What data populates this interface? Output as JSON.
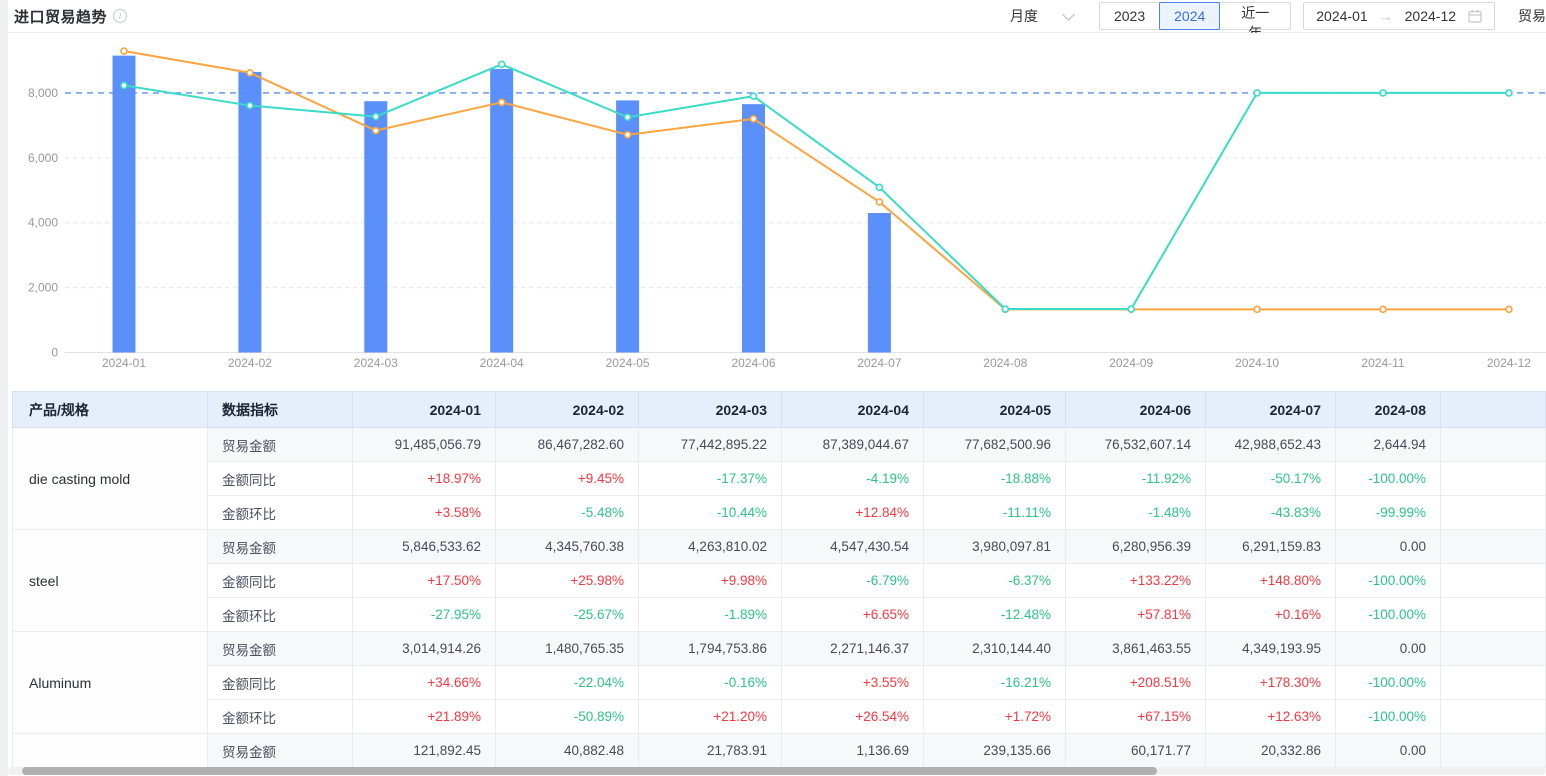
{
  "header": {
    "title": "进口贸易趋势",
    "period_select_value": "月度",
    "year_buttons": [
      "2023",
      "2024",
      "近一年"
    ],
    "active_year": "2024",
    "date_start": "2024-01",
    "date_end": "2024-12",
    "right_partial_label": "贸易"
  },
  "icons": {
    "info": "i",
    "arrow": "→",
    "chevron": "chevron-down",
    "calendar": "calendar"
  },
  "colors": {
    "bar": "#5B8FF9",
    "line_orange": "#FAA53F",
    "line_teal": "#38DCC7",
    "markline": "#5B8DF6",
    "positive": "#f5383f",
    "negative": "#2ec28b",
    "accent": "#3a6fd8"
  },
  "chart_data": {
    "type": "bar+line",
    "categories": [
      "2024-01",
      "2024-02",
      "2024-03",
      "2024-04",
      "2024-05",
      "2024-06",
      "2024-07",
      "2024-08",
      "2024-09",
      "2024-10",
      "2024-11",
      "2024-12"
    ],
    "series": [
      {
        "name": "die-casting-mold-amount-bar",
        "type": "bar",
        "color": "#5B8FF9",
        "values": [
          9148.51,
          8646.73,
          7744.29,
          8738.9,
          7768.25,
          7653.26,
          4298.87,
          0.26,
          0,
          0,
          0,
          0
        ]
      },
      {
        "name": "line-orange",
        "type": "line",
        "color": "#FAA53F",
        "values": [
          9290,
          8620,
          6840,
          7710,
          6710,
          7200,
          4640,
          1330,
          1330,
          1330,
          1330,
          1330
        ]
      },
      {
        "name": "line-teal",
        "type": "line",
        "color": "#38DCC7",
        "values": [
          8230,
          7610,
          7270,
          8880,
          7250,
          7900,
          5090,
          1340,
          1340,
          8000,
          8000,
          8000
        ]
      }
    ],
    "markline": 8000,
    "yticks": [
      0,
      2000,
      4000,
      6000,
      8000
    ],
    "ylim": [
      0,
      9650
    ],
    "grid": true,
    "legend_position": "none",
    "title": "",
    "xlabel": "",
    "ylabel": ""
  },
  "table": {
    "product_header": "产品/规格",
    "metric_header": "数据指标",
    "months": [
      "2024-01",
      "2024-02",
      "2024-03",
      "2024-04",
      "2024-05",
      "2024-06",
      "2024-07",
      "2024-08"
    ],
    "groups": [
      {
        "product": "die casting mold",
        "rows": [
          {
            "metric": "贸易金额",
            "values": [
              "91,485,056.79",
              "86,467,282.60",
              "77,442,895.22",
              "87,389,044.67",
              "77,682,500.96",
              "76,532,607.14",
              "42,988,652.43",
              "2,644.94"
            ]
          },
          {
            "metric": "金额同比",
            "values": [
              "+18.97%",
              "+9.45%",
              "-17.37%",
              "-4.19%",
              "-18.88%",
              "-11.92%",
              "-50.17%",
              "-100.00%"
            ]
          },
          {
            "metric": "金额环比",
            "values": [
              "+3.58%",
              "-5.48%",
              "-10.44%",
              "+12.84%",
              "-11.11%",
              "-1.48%",
              "-43.83%",
              "-99.99%"
            ]
          }
        ]
      },
      {
        "product": "steel",
        "rows": [
          {
            "metric": "贸易金额",
            "values": [
              "5,846,533.62",
              "4,345,760.38",
              "4,263,810.02",
              "4,547,430.54",
              "3,980,097.81",
              "6,280,956.39",
              "6,291,159.83",
              "0.00"
            ]
          },
          {
            "metric": "金额同比",
            "values": [
              "+17.50%",
              "+25.98%",
              "+9.98%",
              "-6.79%",
              "-6.37%",
              "+133.22%",
              "+148.80%",
              "-100.00%"
            ]
          },
          {
            "metric": "金额环比",
            "values": [
              "-27.95%",
              "-25.67%",
              "-1.89%",
              "+6.65%",
              "-12.48%",
              "+57.81%",
              "+0.16%",
              "-100.00%"
            ]
          }
        ]
      },
      {
        "product": "Aluminum",
        "rows": [
          {
            "metric": "贸易金额",
            "values": [
              "3,014,914.26",
              "1,480,765.35",
              "1,794,753.86",
              "2,271,146.37",
              "2,310,144.40",
              "3,861,463.55",
              "4,349,193.95",
              "0.00"
            ]
          },
          {
            "metric": "金额同比",
            "values": [
              "+34.66%",
              "-22.04%",
              "-0.16%",
              "+3.55%",
              "-16.21%",
              "+208.51%",
              "+178.30%",
              "-100.00%"
            ]
          },
          {
            "metric": "金额环比",
            "values": [
              "+21.89%",
              "-50.89%",
              "+21.20%",
              "+26.54%",
              "+1.72%",
              "+67.15%",
              "+12.63%",
              "-100.00%"
            ]
          }
        ]
      },
      {
        "product": "",
        "rows": [
          {
            "metric": "贸易金额",
            "values": [
              "121,892.45",
              "40,882.48",
              "21,783.91",
              "1,136.69",
              "239,135.66",
              "60,171.77",
              "20,332.86",
              "0.00"
            ]
          }
        ]
      }
    ]
  }
}
